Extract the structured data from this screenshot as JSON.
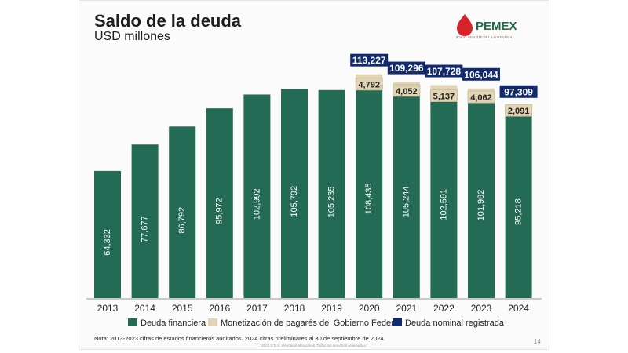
{
  "header": {
    "title": "Saldo de la deuda",
    "subtitle": "USD millones"
  },
  "logo": {
    "name": "PEMEX",
    "tagline": "POR EL RESCATE DE LA SOBERANÍA"
  },
  "chart_data": {
    "type": "bar",
    "stacked": true,
    "categories": [
      "2013",
      "2014",
      "2015",
      "2016",
      "2017",
      "2018",
      "2019",
      "2020",
      "2021",
      "2022",
      "2023",
      "2024"
    ],
    "series": [
      {
        "name": "Deuda financiera",
        "color": "#236b55",
        "values": [
          64332,
          77677,
          86792,
          95972,
          102992,
          105792,
          105235,
          108435,
          105244,
          102591,
          101982,
          95218
        ]
      },
      {
        "name": "Monetización de pagarés del Gobierno Federal",
        "color": "#e0d4b4",
        "values": [
          null,
          null,
          null,
          null,
          null,
          null,
          null,
          4792,
          4052,
          5137,
          4062,
          2091
        ]
      },
      {
        "name": "Deuda nominal registrada",
        "color": "#122a6b",
        "values": [
          null,
          null,
          null,
          null,
          null,
          null,
          null,
          113227,
          109296,
          107728,
          106044,
          97309
        ]
      }
    ],
    "value_labels": {
      "financiera": [
        "64,332",
        "77,677",
        "86,792",
        "95,972",
        "102,992",
        "105,792",
        "105,235",
        "108,435",
        "105,244",
        "102,591",
        "101,982",
        "95,218"
      ],
      "pagares": [
        null,
        null,
        null,
        null,
        null,
        null,
        null,
        "4,792",
        "4,052",
        "5,137",
        "4,062",
        "2,091"
      ],
      "nominal": [
        null,
        null,
        null,
        null,
        null,
        null,
        null,
        "113,227",
        "109,296",
        "107,728",
        "106,044",
        "97,309"
      ]
    },
    "legend_position": "bottom",
    "grid": false
  },
  "footer": {
    "note": "Nota: 2013-2023 cifras de estados financieros auditados. 2024 cifras preliminares al 30 de septiembre de 2024.",
    "copyright": "2024 © D.R. Petróleos Mexicanos. Todos los derechos reservados.",
    "page": "14"
  }
}
